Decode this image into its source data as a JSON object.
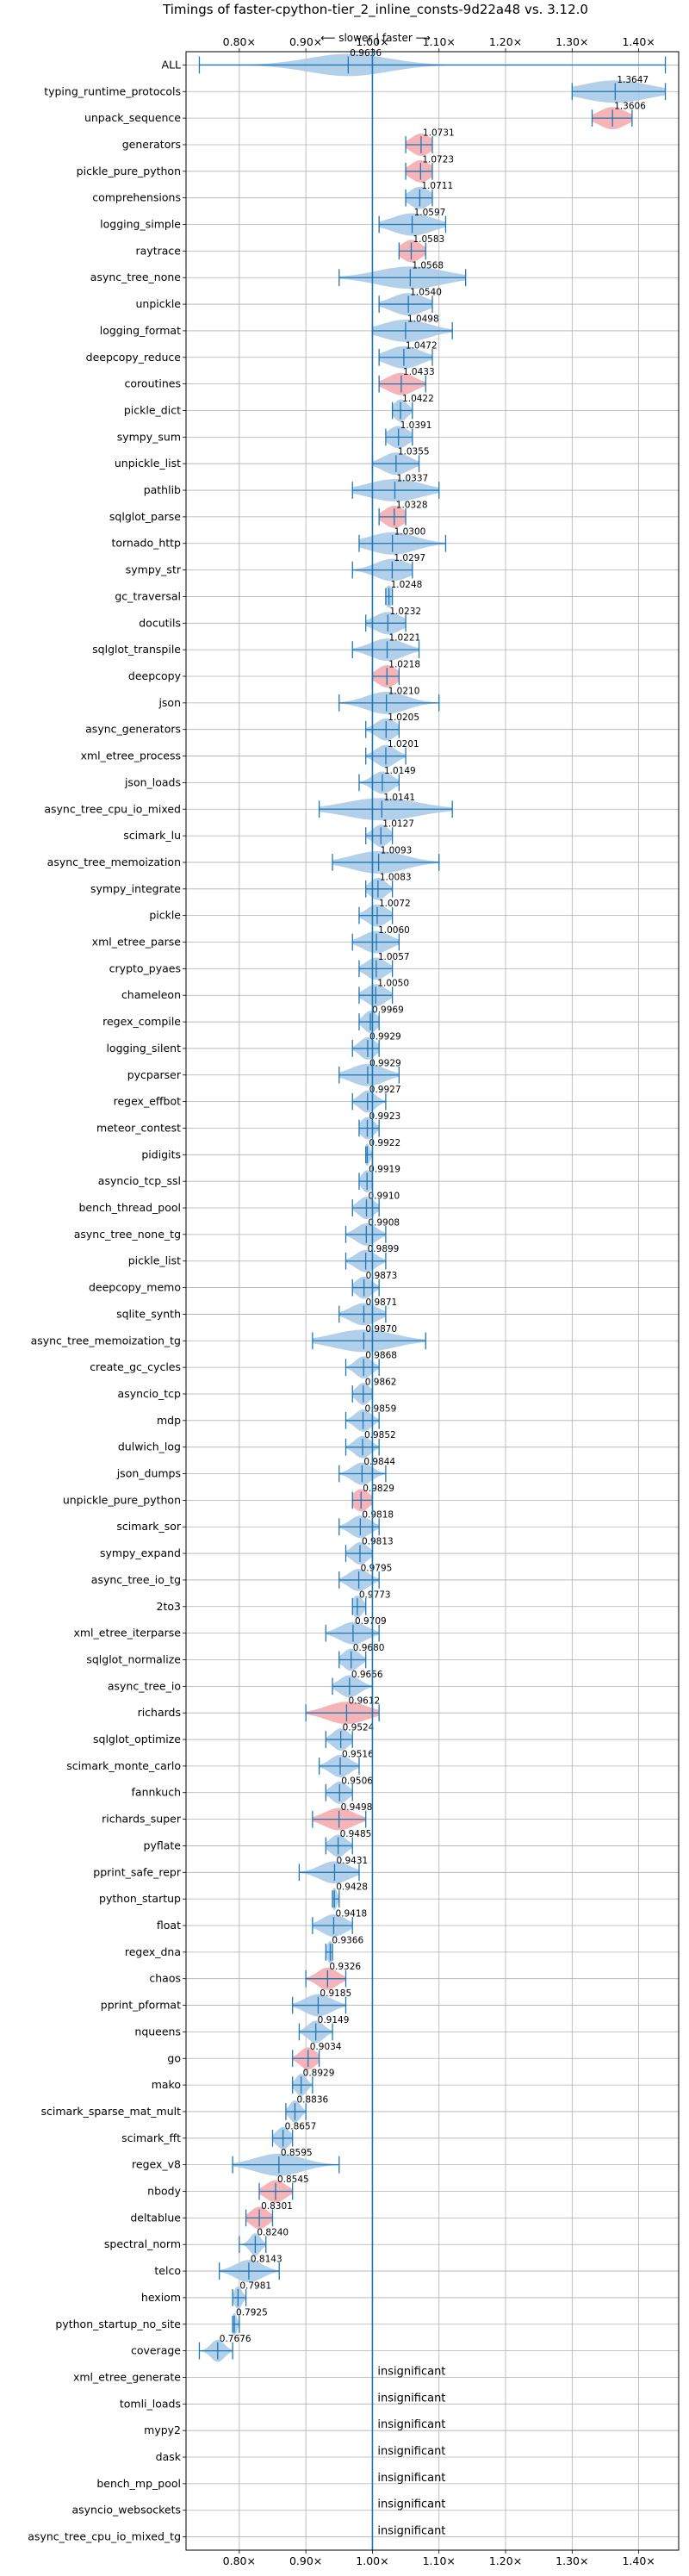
{
  "chart_data": {
    "type": "violin",
    "title": "Timings of faster-cpython-tier_2_inline_consts-9d22a48 vs. 3.12.0",
    "direction_label": "⟵ slower | faster ⟶",
    "xlim": [
      0.72,
      1.46
    ],
    "x_ticks": [
      {
        "value": 0.8,
        "label": "0.80×"
      },
      {
        "value": 0.9,
        "label": "0.90×"
      },
      {
        "value": 1.0,
        "label": "1.00×"
      },
      {
        "value": 1.1,
        "label": "1.10×"
      },
      {
        "value": 1.2,
        "label": "1.20×"
      },
      {
        "value": 1.3,
        "label": "1.30×"
      },
      {
        "value": 1.4,
        "label": "1.40×"
      }
    ],
    "reference_line": 1.0,
    "grid": true,
    "colors": {
      "normal": "#a6c8e8",
      "significant": "#f4a7ad",
      "line": "#1f77b4"
    },
    "insignificant_label": "insignificant",
    "benchmarks": [
      {
        "name": "ALL",
        "value": 0.9636,
        "label": "0.9636",
        "min": 0.74,
        "max": 1.44,
        "spread": 0.06,
        "sig": false
      },
      {
        "name": "typing_runtime_protocols",
        "value": 1.3647,
        "label": "1.3647",
        "min": 1.3,
        "max": 1.44,
        "spread": 0.05,
        "sig": false
      },
      {
        "name": "unpack_sequence",
        "value": 1.3606,
        "label": "1.3606",
        "min": 1.33,
        "max": 1.39,
        "spread": 0.02,
        "sig": true
      },
      {
        "name": "generators",
        "value": 1.0731,
        "label": "1.0731",
        "min": 1.05,
        "max": 1.09,
        "spread": 0.015,
        "sig": true
      },
      {
        "name": "pickle_pure_python",
        "value": 1.0723,
        "label": "1.0723",
        "min": 1.05,
        "max": 1.09,
        "spread": 0.015,
        "sig": true
      },
      {
        "name": "comprehensions",
        "value": 1.0711,
        "label": "1.0711",
        "min": 1.05,
        "max": 1.09,
        "spread": 0.015,
        "sig": false
      },
      {
        "name": "logging_simple",
        "value": 1.0597,
        "label": "1.0597",
        "min": 1.01,
        "max": 1.11,
        "spread": 0.03,
        "sig": false
      },
      {
        "name": "raytrace",
        "value": 1.0583,
        "label": "1.0583",
        "min": 1.04,
        "max": 1.08,
        "spread": 0.015,
        "sig": true
      },
      {
        "name": "async_tree_none",
        "value": 1.0568,
        "label": "1.0568",
        "min": 0.95,
        "max": 1.14,
        "spread": 0.05,
        "sig": false
      },
      {
        "name": "unpickle",
        "value": 1.054,
        "label": "1.0540",
        "min": 1.01,
        "max": 1.09,
        "spread": 0.025,
        "sig": false
      },
      {
        "name": "logging_format",
        "value": 1.0498,
        "label": "1.0498",
        "min": 1.0,
        "max": 1.12,
        "spread": 0.035,
        "sig": false
      },
      {
        "name": "deepcopy_reduce",
        "value": 1.0472,
        "label": "1.0472",
        "min": 1.01,
        "max": 1.09,
        "spread": 0.025,
        "sig": false
      },
      {
        "name": "coroutines",
        "value": 1.0433,
        "label": "1.0433",
        "min": 1.01,
        "max": 1.08,
        "spread": 0.02,
        "sig": true
      },
      {
        "name": "pickle_dict",
        "value": 1.0422,
        "label": "1.0422",
        "min": 1.03,
        "max": 1.06,
        "spread": 0.01,
        "sig": false
      },
      {
        "name": "sympy_sum",
        "value": 1.0391,
        "label": "1.0391",
        "min": 1.02,
        "max": 1.06,
        "spread": 0.015,
        "sig": false
      },
      {
        "name": "unpickle_list",
        "value": 1.0355,
        "label": "1.0355",
        "min": 1.0,
        "max": 1.07,
        "spread": 0.02,
        "sig": false
      },
      {
        "name": "pathlib",
        "value": 1.0337,
        "label": "1.0337",
        "min": 0.97,
        "max": 1.1,
        "spread": 0.04,
        "sig": false
      },
      {
        "name": "sqlglot_parse",
        "value": 1.0328,
        "label": "1.0328",
        "min": 1.01,
        "max": 1.05,
        "spread": 0.015,
        "sig": true
      },
      {
        "name": "tornado_http",
        "value": 1.03,
        "label": "1.0300",
        "min": 0.98,
        "max": 1.11,
        "spread": 0.035,
        "sig": false
      },
      {
        "name": "sympy_str",
        "value": 1.0297,
        "label": "1.0297",
        "min": 0.97,
        "max": 1.06,
        "spread": 0.025,
        "sig": false
      },
      {
        "name": "gc_traversal",
        "value": 1.0248,
        "label": "1.0248",
        "min": 1.02,
        "max": 1.03,
        "spread": 0.006,
        "sig": false
      },
      {
        "name": "docutils",
        "value": 1.0232,
        "label": "1.0232",
        "min": 0.99,
        "max": 1.05,
        "spread": 0.02,
        "sig": false
      },
      {
        "name": "sqlglot_transpile",
        "value": 1.0221,
        "label": "1.0221",
        "min": 0.97,
        "max": 1.07,
        "spread": 0.025,
        "sig": false
      },
      {
        "name": "deepcopy",
        "value": 1.0218,
        "label": "1.0218",
        "min": 1.0,
        "max": 1.04,
        "spread": 0.015,
        "sig": true
      },
      {
        "name": "json",
        "value": 1.021,
        "label": "1.0210",
        "min": 0.95,
        "max": 1.1,
        "spread": 0.03,
        "sig": false
      },
      {
        "name": "async_generators",
        "value": 1.0205,
        "label": "1.0205",
        "min": 0.99,
        "max": 1.04,
        "spread": 0.015,
        "sig": false
      },
      {
        "name": "xml_etree_process",
        "value": 1.0201,
        "label": "1.0201",
        "min": 0.99,
        "max": 1.05,
        "spread": 0.015,
        "sig": false
      },
      {
        "name": "json_loads",
        "value": 1.0149,
        "label": "1.0149",
        "min": 0.98,
        "max": 1.04,
        "spread": 0.015,
        "sig": false
      },
      {
        "name": "async_tree_cpu_io_mixed",
        "value": 1.0141,
        "label": "1.0141",
        "min": 0.92,
        "max": 1.12,
        "spread": 0.055,
        "sig": false
      },
      {
        "name": "scimark_lu",
        "value": 1.0127,
        "label": "1.0127",
        "min": 0.99,
        "max": 1.03,
        "spread": 0.012,
        "sig": false
      },
      {
        "name": "async_tree_memoization",
        "value": 1.0093,
        "label": "1.0093",
        "min": 0.94,
        "max": 1.1,
        "spread": 0.04,
        "sig": false
      },
      {
        "name": "sympy_integrate",
        "value": 1.0083,
        "label": "1.0083",
        "min": 0.99,
        "max": 1.03,
        "spread": 0.012,
        "sig": false
      },
      {
        "name": "pickle",
        "value": 1.0072,
        "label": "1.0072",
        "min": 0.98,
        "max": 1.03,
        "spread": 0.015,
        "sig": false
      },
      {
        "name": "xml_etree_parse",
        "value": 1.006,
        "label": "1.0060",
        "min": 0.97,
        "max": 1.04,
        "spread": 0.02,
        "sig": false
      },
      {
        "name": "crypto_pyaes",
        "value": 1.0057,
        "label": "1.0057",
        "min": 0.98,
        "max": 1.03,
        "spread": 0.015,
        "sig": false
      },
      {
        "name": "chameleon",
        "value": 1.005,
        "label": "1.0050",
        "min": 0.98,
        "max": 1.03,
        "spread": 0.015,
        "sig": false
      },
      {
        "name": "regex_compile",
        "value": 0.9969,
        "label": "0.9969",
        "min": 0.98,
        "max": 1.01,
        "spread": 0.01,
        "sig": false
      },
      {
        "name": "logging_silent",
        "value": 0.9929,
        "label": "0.9929",
        "min": 0.97,
        "max": 1.01,
        "spread": 0.012,
        "sig": false
      },
      {
        "name": "pycparser",
        "value": 0.9929,
        "label": "0.9929",
        "min": 0.95,
        "max": 1.04,
        "spread": 0.025,
        "sig": false
      },
      {
        "name": "regex_effbot",
        "value": 0.9927,
        "label": "0.9927",
        "min": 0.97,
        "max": 1.02,
        "spread": 0.012,
        "sig": false
      },
      {
        "name": "meteor_contest",
        "value": 0.9923,
        "label": "0.9923",
        "min": 0.98,
        "max": 1.01,
        "spread": 0.01,
        "sig": false
      },
      {
        "name": "pidigits",
        "value": 0.9922,
        "label": "0.9922",
        "min": 0.99,
        "max": 1.0,
        "spread": 0.004,
        "sig": false
      },
      {
        "name": "asyncio_tcp_ssl",
        "value": 0.9919,
        "label": "0.9919",
        "min": 0.98,
        "max": 1.0,
        "spread": 0.008,
        "sig": false
      },
      {
        "name": "bench_thread_pool",
        "value": 0.991,
        "label": "0.9910",
        "min": 0.97,
        "max": 1.01,
        "spread": 0.012,
        "sig": false
      },
      {
        "name": "async_tree_none_tg",
        "value": 0.9908,
        "label": "0.9908",
        "min": 0.96,
        "max": 1.02,
        "spread": 0.015,
        "sig": false
      },
      {
        "name": "pickle_list",
        "value": 0.9899,
        "label": "0.9899",
        "min": 0.96,
        "max": 1.02,
        "spread": 0.015,
        "sig": false
      },
      {
        "name": "deepcopy_memo",
        "value": 0.9873,
        "label": "0.9873",
        "min": 0.97,
        "max": 1.01,
        "spread": 0.012,
        "sig": false
      },
      {
        "name": "sqlite_synth",
        "value": 0.9871,
        "label": "0.9871",
        "min": 0.95,
        "max": 1.02,
        "spread": 0.02,
        "sig": false
      },
      {
        "name": "async_tree_memoization_tg",
        "value": 0.987,
        "label": "0.9870",
        "min": 0.91,
        "max": 1.08,
        "spread": 0.045,
        "sig": false
      },
      {
        "name": "create_gc_cycles",
        "value": 0.9868,
        "label": "0.9868",
        "min": 0.96,
        "max": 1.01,
        "spread": 0.012,
        "sig": false
      },
      {
        "name": "asyncio_tcp",
        "value": 0.9862,
        "label": "0.9862",
        "min": 0.97,
        "max": 1.0,
        "spread": 0.01,
        "sig": false
      },
      {
        "name": "mdp",
        "value": 0.9859,
        "label": "0.9859",
        "min": 0.96,
        "max": 1.01,
        "spread": 0.012,
        "sig": false
      },
      {
        "name": "dulwich_log",
        "value": 0.9852,
        "label": "0.9852",
        "min": 0.96,
        "max": 1.01,
        "spread": 0.012,
        "sig": false
      },
      {
        "name": "json_dumps",
        "value": 0.9844,
        "label": "0.9844",
        "min": 0.95,
        "max": 1.02,
        "spread": 0.015,
        "sig": false
      },
      {
        "name": "unpickle_pure_python",
        "value": 0.9829,
        "label": "0.9829",
        "min": 0.97,
        "max": 1.0,
        "spread": 0.012,
        "sig": true
      },
      {
        "name": "scimark_sor",
        "value": 0.9818,
        "label": "0.9818",
        "min": 0.95,
        "max": 1.01,
        "spread": 0.015,
        "sig": false
      },
      {
        "name": "sympy_expand",
        "value": 0.9813,
        "label": "0.9813",
        "min": 0.96,
        "max": 1.0,
        "spread": 0.012,
        "sig": false
      },
      {
        "name": "async_tree_io_tg",
        "value": 0.9795,
        "label": "0.9795",
        "min": 0.95,
        "max": 1.01,
        "spread": 0.015,
        "sig": false
      },
      {
        "name": "2to3",
        "value": 0.9773,
        "label": "0.9773",
        "min": 0.97,
        "max": 0.99,
        "spread": 0.008,
        "sig": false
      },
      {
        "name": "xml_etree_iterparse",
        "value": 0.9709,
        "label": "0.9709",
        "min": 0.93,
        "max": 1.01,
        "spread": 0.02,
        "sig": false
      },
      {
        "name": "sqlglot_normalize",
        "value": 0.968,
        "label": "0.9680",
        "min": 0.95,
        "max": 0.99,
        "spread": 0.012,
        "sig": false
      },
      {
        "name": "async_tree_io",
        "value": 0.9656,
        "label": "0.9656",
        "min": 0.94,
        "max": 1.0,
        "spread": 0.015,
        "sig": false
      },
      {
        "name": "richards",
        "value": 0.9612,
        "label": "0.9612",
        "min": 0.9,
        "max": 1.01,
        "spread": 0.03,
        "sig": true
      },
      {
        "name": "sqlglot_optimize",
        "value": 0.9524,
        "label": "0.9524",
        "min": 0.93,
        "max": 0.97,
        "spread": 0.012,
        "sig": false
      },
      {
        "name": "scimark_monte_carlo",
        "value": 0.9516,
        "label": "0.9516",
        "min": 0.92,
        "max": 0.98,
        "spread": 0.015,
        "sig": false
      },
      {
        "name": "fannkuch",
        "value": 0.9506,
        "label": "0.9506",
        "min": 0.93,
        "max": 0.97,
        "spread": 0.012,
        "sig": false
      },
      {
        "name": "richards_super",
        "value": 0.9498,
        "label": "0.9498",
        "min": 0.91,
        "max": 0.99,
        "spread": 0.022,
        "sig": true
      },
      {
        "name": "pyflate",
        "value": 0.9485,
        "label": "0.9485",
        "min": 0.93,
        "max": 0.97,
        "spread": 0.012,
        "sig": false
      },
      {
        "name": "pprint_safe_repr",
        "value": 0.9431,
        "label": "0.9431",
        "min": 0.89,
        "max": 0.98,
        "spread": 0.022,
        "sig": false
      },
      {
        "name": "python_startup",
        "value": 0.9428,
        "label": "0.9428",
        "min": 0.94,
        "max": 0.95,
        "spread": 0.004,
        "sig": false
      },
      {
        "name": "float",
        "value": 0.9418,
        "label": "0.9418",
        "min": 0.91,
        "max": 0.97,
        "spread": 0.018,
        "sig": false
      },
      {
        "name": "regex_dna",
        "value": 0.9366,
        "label": "0.9366",
        "min": 0.93,
        "max": 0.94,
        "spread": 0.005,
        "sig": false
      },
      {
        "name": "chaos",
        "value": 0.9326,
        "label": "0.9326",
        "min": 0.9,
        "max": 0.96,
        "spread": 0.015,
        "sig": true
      },
      {
        "name": "pprint_pformat",
        "value": 0.9185,
        "label": "0.9185",
        "min": 0.88,
        "max": 0.96,
        "spread": 0.02,
        "sig": false
      },
      {
        "name": "nqueens",
        "value": 0.9149,
        "label": "0.9149",
        "min": 0.89,
        "max": 0.94,
        "spread": 0.012,
        "sig": false
      },
      {
        "name": "go",
        "value": 0.9034,
        "label": "0.9034",
        "min": 0.88,
        "max": 0.92,
        "spread": 0.012,
        "sig": true
      },
      {
        "name": "mako",
        "value": 0.8929,
        "label": "0.8929",
        "min": 0.88,
        "max": 0.91,
        "spread": 0.008,
        "sig": false
      },
      {
        "name": "scimark_sparse_mat_mult",
        "value": 0.8836,
        "label": "0.8836",
        "min": 0.87,
        "max": 0.9,
        "spread": 0.008,
        "sig": false
      },
      {
        "name": "scimark_fft",
        "value": 0.8657,
        "label": "0.8657",
        "min": 0.85,
        "max": 0.88,
        "spread": 0.01,
        "sig": false
      },
      {
        "name": "regex_v8",
        "value": 0.8595,
        "label": "0.8595",
        "min": 0.79,
        "max": 0.95,
        "spread": 0.035,
        "sig": false
      },
      {
        "name": "nbody",
        "value": 0.8545,
        "label": "0.8545",
        "min": 0.83,
        "max": 0.88,
        "spread": 0.015,
        "sig": true
      },
      {
        "name": "deltablue",
        "value": 0.8301,
        "label": "0.8301",
        "min": 0.81,
        "max": 0.85,
        "spread": 0.013,
        "sig": true
      },
      {
        "name": "spectral_norm",
        "value": 0.824,
        "label": "0.8240",
        "min": 0.8,
        "max": 0.84,
        "spread": 0.008,
        "sig": false
      },
      {
        "name": "telco",
        "value": 0.8143,
        "label": "0.8143",
        "min": 0.77,
        "max": 0.86,
        "spread": 0.02,
        "sig": false
      },
      {
        "name": "hexiom",
        "value": 0.7981,
        "label": "0.7981",
        "min": 0.79,
        "max": 0.81,
        "spread": 0.006,
        "sig": false
      },
      {
        "name": "python_startup_no_site",
        "value": 0.7925,
        "label": "0.7925",
        "min": 0.79,
        "max": 0.8,
        "spread": 0.004,
        "sig": false
      },
      {
        "name": "coverage",
        "value": 0.7676,
        "label": "0.7676",
        "min": 0.74,
        "max": 0.79,
        "spread": 0.01,
        "sig": false
      },
      {
        "name": "xml_etree_generate",
        "value": null,
        "label": "insignificant"
      },
      {
        "name": "tomli_loads",
        "value": null,
        "label": "insignificant"
      },
      {
        "name": "mypy2",
        "value": null,
        "label": "insignificant"
      },
      {
        "name": "dask",
        "value": null,
        "label": "insignificant"
      },
      {
        "name": "bench_mp_pool",
        "value": null,
        "label": "insignificant"
      },
      {
        "name": "asyncio_websockets",
        "value": null,
        "label": "insignificant"
      },
      {
        "name": "async_tree_cpu_io_mixed_tg",
        "value": null,
        "label": "insignificant"
      }
    ]
  }
}
